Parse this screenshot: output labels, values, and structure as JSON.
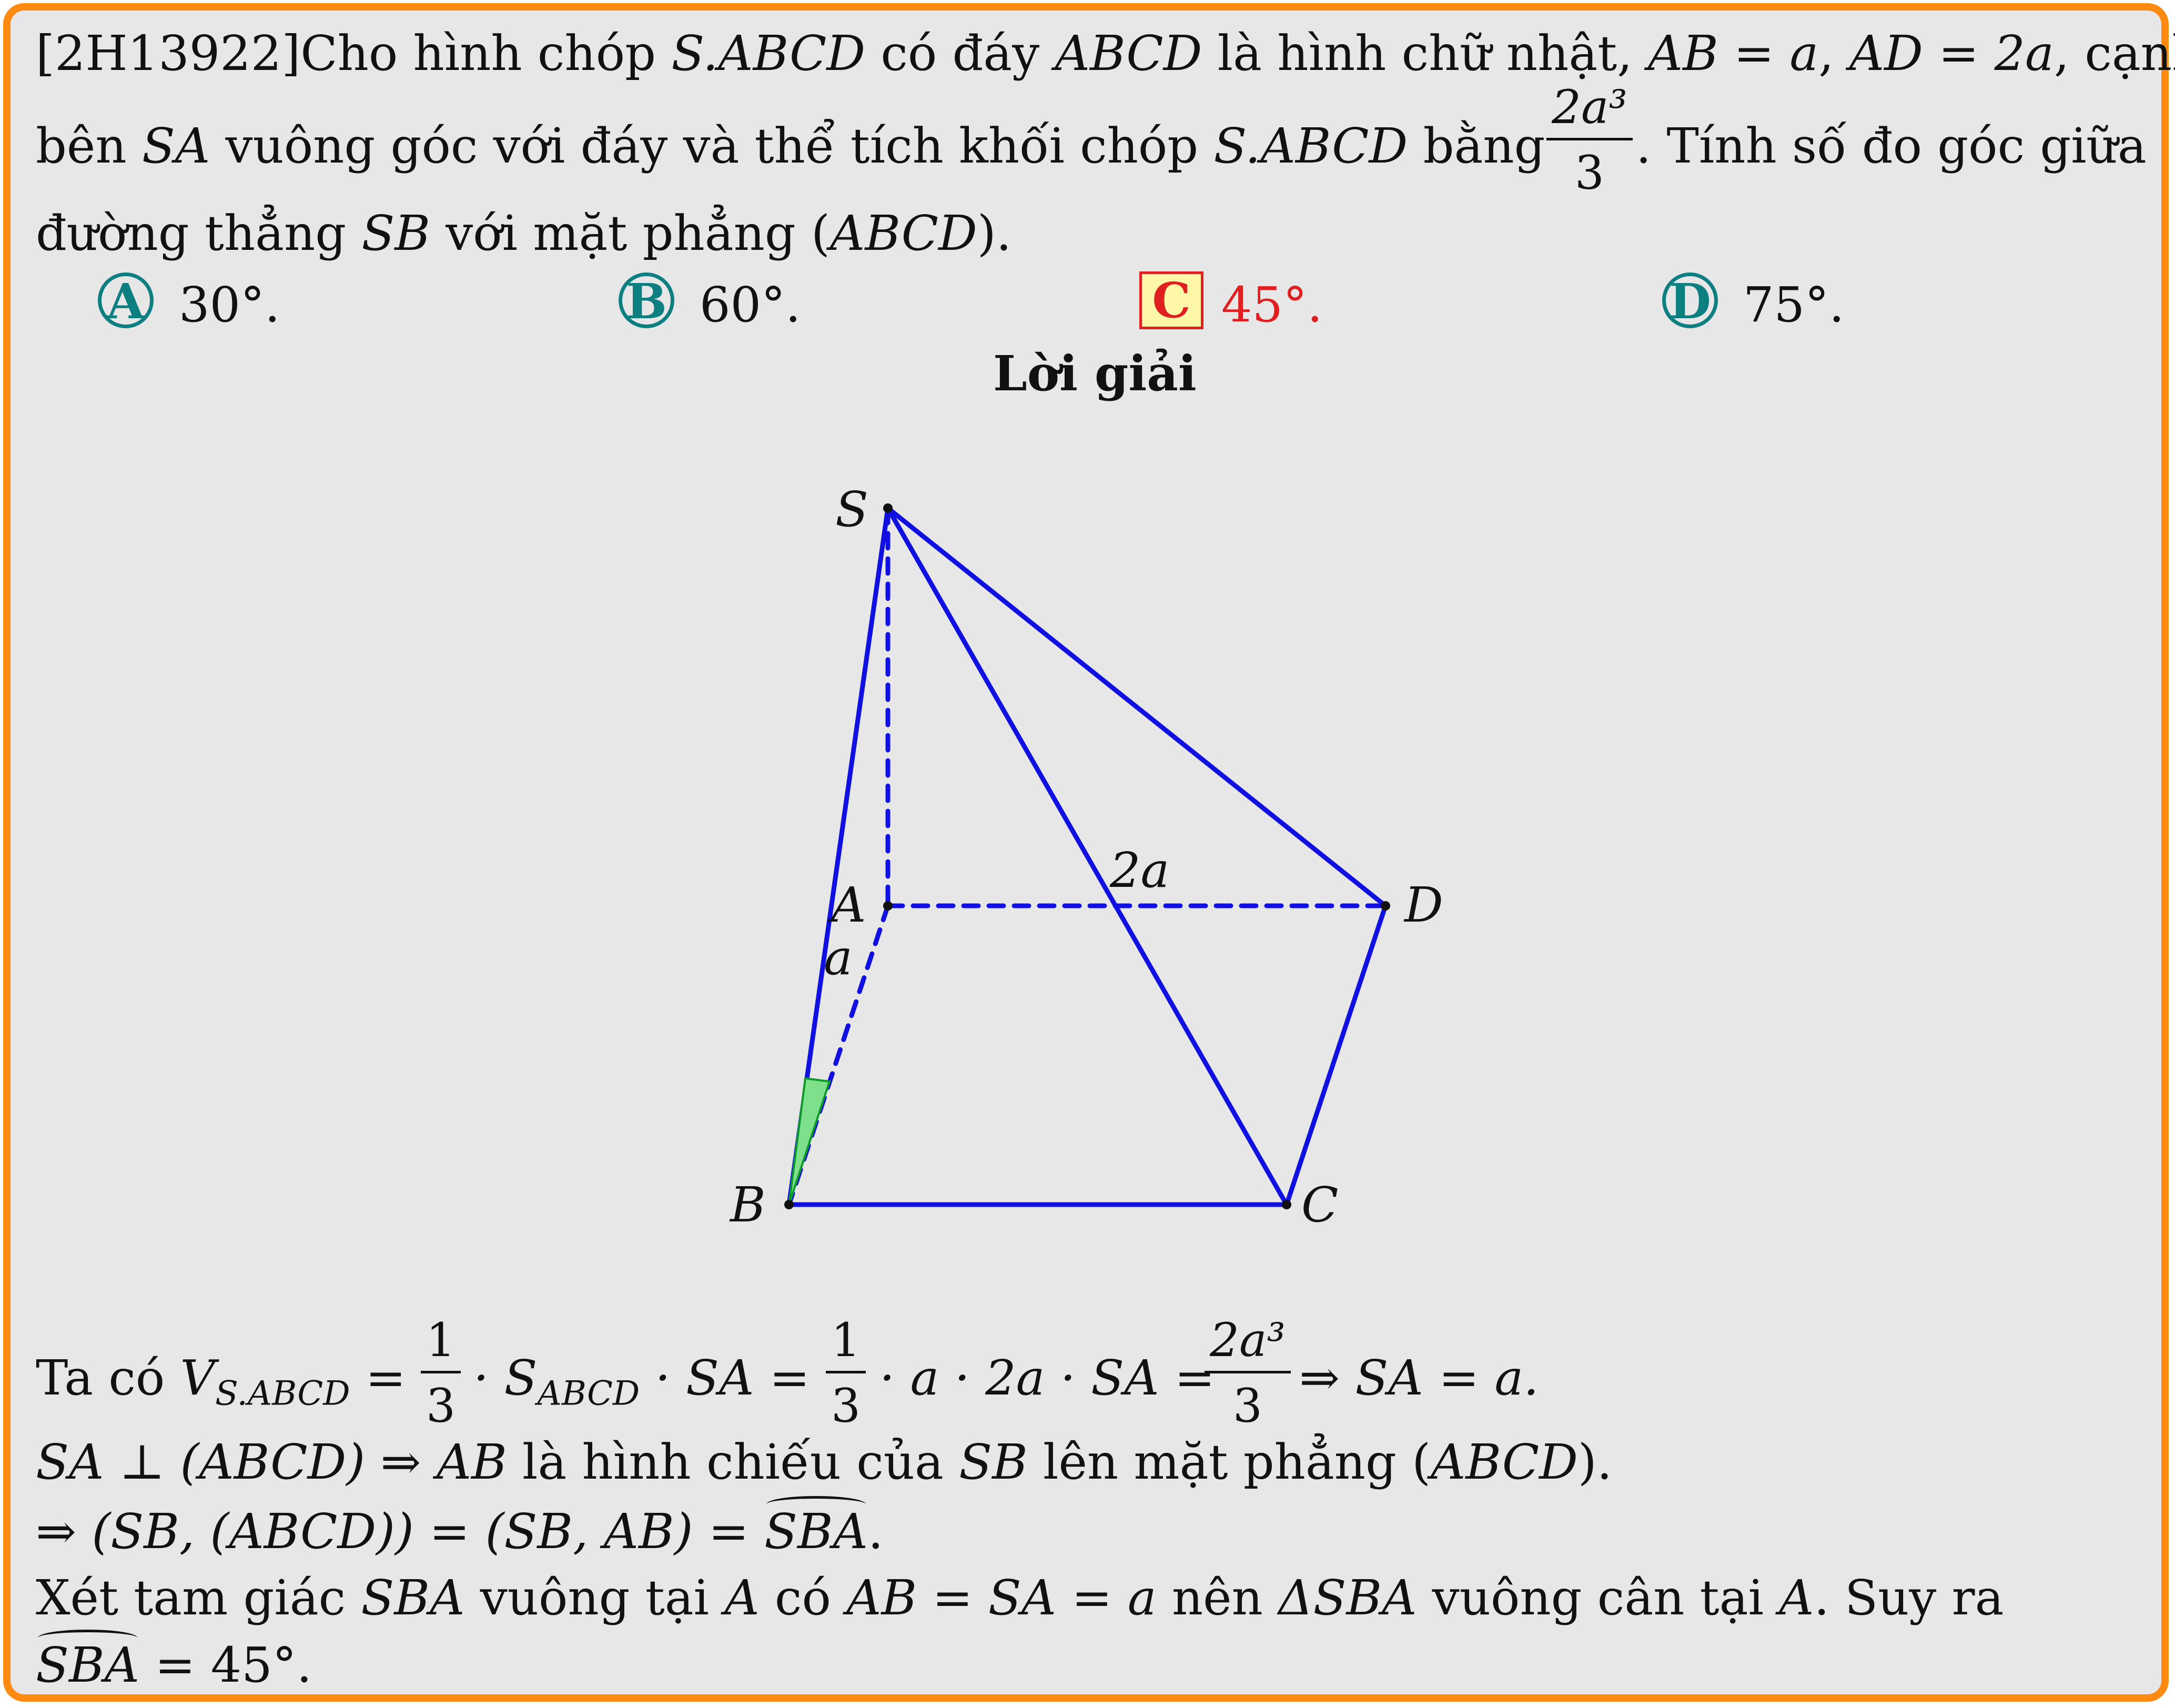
{
  "problem": {
    "line1_code": "[2H13922]",
    "line1_a": "Cho hình chóp ",
    "line1_b": "S.ABCD",
    "line1_c": " có đáy ",
    "line1_d": "ABCD",
    "line1_e": " là hình chữ nhật, ",
    "line1_f": "AB = a",
    "line1_g": ", ",
    "line1_h": "AD = 2a",
    "line1_i": ", cạnh",
    "line2_a": "bên ",
    "line2_b": "SA",
    "line2_c": " vuông góc với đáy và thể tích khối chóp ",
    "line2_d": "S.ABCD",
    "line2_e": " bằng",
    "vol_num": "2a³",
    "vol_den": "3",
    "line2_f": ". Tính số đo góc giữa",
    "line3_a": "đường thẳng ",
    "line3_b": "SB",
    "line3_c": " với mặt phẳng (",
    "line3_d": "ABCD",
    "line3_e": ")."
  },
  "options": [
    {
      "letter": "A",
      "value": "30°.",
      "correct": false
    },
    {
      "letter": "B",
      "value": "60°.",
      "correct": false
    },
    {
      "letter": "C",
      "value": "45°.",
      "correct": true
    },
    {
      "letter": "D",
      "value": "75°.",
      "correct": false
    }
  ],
  "solution_heading": "Lời giải",
  "figure": {
    "labels": {
      "S": "S",
      "A": "A",
      "B": "B",
      "C": "C",
      "D": "D",
      "AB": "a",
      "AD": "2a"
    },
    "edge_color": "#1010e0",
    "angle_fill": "#7ee08a"
  },
  "solution": {
    "l1_a": "Ta có ",
    "l1_b": "V",
    "l1_b_sub": "S.ABCD",
    "l1_c": " = ",
    "f1_num": "1",
    "f1_den": "3",
    "l1_d": "· S",
    "l1_d_sub": "ABCD",
    "l1_e": " · SA = ",
    "f2_num": "1",
    "f2_den": "3",
    "l1_f": "· a · 2a · SA = ",
    "f3_num": "2a³",
    "f3_den": "3",
    "l1_g": "⇒ SA = a.",
    "l2_a": "SA ⊥ (ABCD) ⇒ AB",
    "l2_b": " là hình chiếu của ",
    "l2_c": "SB",
    "l2_d": " lên mặt phẳng (",
    "l2_e": "ABCD",
    "l2_f": ").",
    "l3_a": "⇒ (SB, (ABCD)) = (SB, AB) = ",
    "l3_hat": "SBA",
    "l3_b": ".",
    "l4_a": "Xét tam giác ",
    "l4_b": "SBA",
    "l4_c": " vuông tại ",
    "l4_d": "A",
    "l4_e": " có ",
    "l4_f": "AB = SA = a",
    "l4_g": " nên ",
    "l4_h": "ΔSBA",
    "l4_i": " vuông cân tại ",
    "l4_j": "A",
    "l4_k": ". Suy ra",
    "l5_hat": "SBA",
    "l5_b": " = 45°."
  }
}
